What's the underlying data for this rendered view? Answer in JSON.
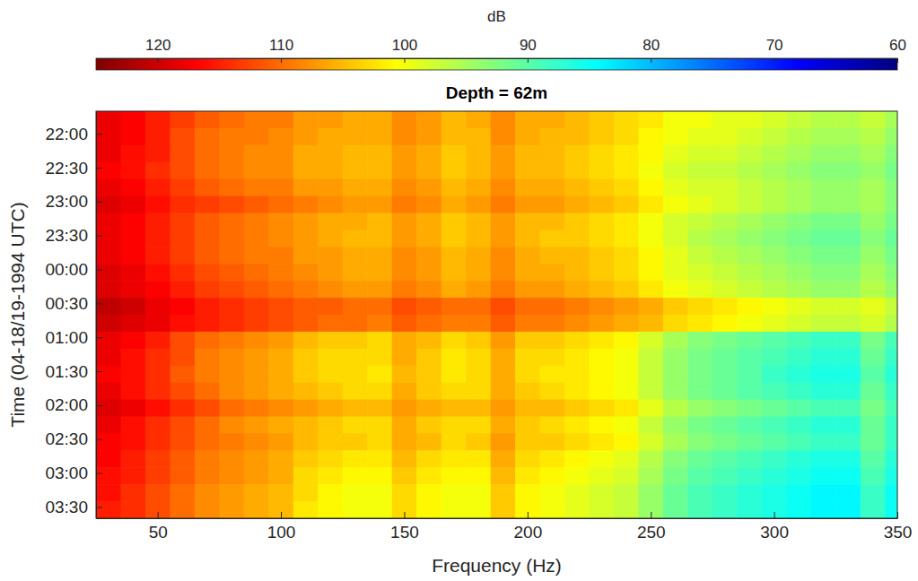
{
  "chart_data": {
    "type": "heatmap",
    "title": "Depth = 62m",
    "x_label": "Frequency (Hz)",
    "y_label": "Time (04-18/19-1994 UTC)",
    "xlim": [
      25,
      350
    ],
    "xticks": [
      50,
      100,
      150,
      200,
      250,
      300,
      350
    ],
    "ylim": [
      1300,
      1660
    ],
    "yticks": [
      {
        "value": 1320,
        "label": "22:00"
      },
      {
        "value": 1350,
        "label": "22:30"
      },
      {
        "value": 1380,
        "label": "23:00"
      },
      {
        "value": 1410,
        "label": "23:30"
      },
      {
        "value": 1440,
        "label": "00:00"
      },
      {
        "value": 1470,
        "label": "00:30"
      },
      {
        "value": 1500,
        "label": "01:00"
      },
      {
        "value": 1530,
        "label": "01:30"
      },
      {
        "value": 1560,
        "label": "02:00"
      },
      {
        "value": 1590,
        "label": "02:30"
      },
      {
        "value": 1620,
        "label": "03:00"
      },
      {
        "value": 1650,
        "label": "03:30"
      }
    ],
    "colorbar": {
      "title": "dB",
      "range": [
        125,
        60
      ],
      "ticks": [
        120,
        110,
        100,
        90,
        80,
        70,
        60
      ]
    },
    "x": [
      30,
      40,
      50,
      60,
      70,
      80,
      90,
      100,
      110,
      120,
      130,
      140,
      150,
      160,
      170,
      180,
      190,
      200,
      210,
      220,
      230,
      240,
      250,
      260,
      270,
      280,
      290,
      300,
      310,
      320,
      330,
      340,
      350
    ],
    "y": [
      1307.5,
      1322.5,
      1337.5,
      1352.5,
      1367.5,
      1382.5,
      1397.5,
      1412.5,
      1427.5,
      1442.5,
      1457.5,
      1472.5,
      1487.5,
      1502.5,
      1517.5,
      1532.5,
      1547.5,
      1562.5,
      1577.5,
      1592.5,
      1607.5,
      1622.5,
      1637.5,
      1652.5
    ],
    "values": [
      [
        118,
        117,
        115,
        113,
        111,
        110,
        109,
        109,
        107,
        107,
        106,
        106,
        108,
        107,
        105,
        106,
        108,
        106,
        106,
        105,
        104,
        103,
        102,
        100,
        100,
        99,
        99,
        98,
        97,
        96,
        96,
        97,
        95
      ],
      [
        118,
        117,
        115,
        112,
        110,
        109,
        109,
        108,
        107,
        106,
        106,
        106,
        108,
        107,
        105,
        105,
        108,
        106,
        105,
        105,
        104,
        103,
        101,
        100,
        99,
        99,
        98,
        97,
        96,
        95,
        95,
        96,
        94
      ],
      [
        118,
        116,
        115,
        112,
        110,
        109,
        108,
        108,
        106,
        106,
        105,
        105,
        107,
        106,
        104,
        105,
        107,
        105,
        105,
        104,
        103,
        102,
        101,
        99,
        98,
        98,
        97,
        96,
        95,
        94,
        94,
        95,
        93
      ],
      [
        117,
        116,
        114,
        112,
        110,
        109,
        108,
        108,
        106,
        106,
        105,
        105,
        107,
        106,
        104,
        105,
        107,
        105,
        105,
        104,
        103,
        102,
        100,
        98,
        97,
        97,
        96,
        95,
        94,
        93,
        93,
        94,
        92
      ],
      [
        118,
        117,
        115,
        113,
        111,
        110,
        109,
        109,
        107,
        107,
        106,
        106,
        108,
        107,
        105,
        106,
        108,
        106,
        106,
        105,
        104,
        103,
        101,
        99,
        98,
        98,
        97,
        96,
        95,
        94,
        94,
        95,
        93
      ],
      [
        119,
        118,
        116,
        114,
        113,
        112,
        111,
        110,
        109,
        108,
        107,
        107,
        109,
        108,
        106,
        107,
        109,
        107,
        107,
        106,
        105,
        104,
        102,
        100,
        99,
        98,
        97,
        96,
        95,
        94,
        94,
        95,
        93
      ],
      [
        118,
        117,
        115,
        113,
        111,
        110,
        109,
        108,
        107,
        106,
        106,
        105,
        107,
        106,
        104,
        105,
        107,
        105,
        105,
        104,
        103,
        102,
        100,
        98,
        97,
        96,
        95,
        94,
        93,
        92,
        92,
        94,
        92
      ],
      [
        118,
        117,
        115,
        113,
        111,
        110,
        109,
        108,
        107,
        106,
        105,
        105,
        107,
        106,
        104,
        105,
        107,
        105,
        104,
        104,
        103,
        102,
        100,
        98,
        96,
        95,
        94,
        93,
        92,
        91,
        91,
        93,
        91
      ],
      [
        118,
        117,
        115,
        113,
        111,
        110,
        109,
        109,
        107,
        107,
        106,
        106,
        108,
        107,
        105,
        106,
        108,
        106,
        105,
        105,
        104,
        103,
        101,
        99,
        97,
        96,
        95,
        94,
        93,
        92,
        92,
        94,
        92
      ],
      [
        119,
        118,
        116,
        114,
        112,
        111,
        110,
        109,
        108,
        107,
        106,
        106,
        108,
        107,
        105,
        106,
        108,
        106,
        106,
        105,
        104,
        103,
        101,
        99,
        98,
        97,
        96,
        95,
        94,
        93,
        93,
        95,
        93
      ],
      [
        119,
        118,
        117,
        115,
        113,
        112,
        111,
        110,
        109,
        108,
        107,
        107,
        109,
        108,
        106,
        107,
        109,
        107,
        107,
        106,
        105,
        104,
        102,
        100,
        99,
        98,
        97,
        96,
        95,
        94,
        94,
        96,
        94
      ],
      [
        121,
        120,
        118,
        117,
        115,
        114,
        113,
        112,
        111,
        111,
        110,
        110,
        112,
        111,
        110,
        110,
        112,
        110,
        110,
        109,
        108,
        107,
        106,
        104,
        103,
        102,
        101,
        100,
        99,
        98,
        98,
        99,
        97
      ],
      [
        120,
        119,
        118,
        116,
        115,
        114,
        113,
        112,
        111,
        110,
        110,
        109,
        111,
        110,
        109,
        109,
        111,
        109,
        109,
        108,
        107,
        106,
        105,
        103,
        102,
        101,
        100,
        99,
        98,
        97,
        97,
        98,
        96
      ],
      [
        118,
        117,
        115,
        112,
        110,
        109,
        108,
        107,
        105,
        104,
        104,
        103,
        106,
        105,
        103,
        104,
        107,
        104,
        104,
        103,
        102,
        101,
        98,
        95,
        93,
        92,
        91,
        90,
        89,
        88,
        88,
        92,
        89
      ],
      [
        118,
        116,
        114,
        112,
        109,
        108,
        107,
        106,
        104,
        103,
        103,
        103,
        106,
        104,
        102,
        103,
        106,
        103,
        103,
        102,
        101,
        100,
        97,
        94,
        92,
        91,
        90,
        89,
        88,
        87,
        87,
        91,
        88
      ],
      [
        117,
        116,
        114,
        111,
        109,
        108,
        107,
        106,
        104,
        103,
        103,
        102,
        105,
        104,
        102,
        103,
        106,
        103,
        102,
        102,
        101,
        100,
        97,
        94,
        92,
        91,
        90,
        88,
        87,
        86,
        86,
        90,
        87
      ],
      [
        118,
        116,
        114,
        112,
        110,
        108,
        107,
        106,
        105,
        104,
        103,
        103,
        106,
        104,
        103,
        103,
        106,
        104,
        103,
        102,
        101,
        100,
        97,
        94,
        92,
        91,
        90,
        89,
        88,
        87,
        87,
        91,
        88
      ],
      [
        119,
        118,
        116,
        114,
        112,
        110,
        109,
        108,
        107,
        106,
        105,
        105,
        107,
        106,
        105,
        105,
        107,
        105,
        105,
        104,
        103,
        102,
        99,
        96,
        94,
        93,
        92,
        91,
        90,
        89,
        89,
        92,
        89
      ],
      [
        118,
        116,
        114,
        112,
        110,
        108,
        107,
        106,
        105,
        104,
        103,
        103,
        106,
        104,
        103,
        103,
        106,
        104,
        103,
        102,
        101,
        100,
        97,
        94,
        92,
        91,
        90,
        89,
        88,
        87,
        87,
        91,
        88
      ],
      [
        117,
        116,
        114,
        112,
        110,
        109,
        108,
        107,
        105,
        104,
        104,
        103,
        106,
        105,
        103,
        104,
        107,
        104,
        104,
        103,
        102,
        101,
        98,
        95,
        93,
        92,
        91,
        90,
        89,
        88,
        88,
        91,
        88
      ],
      [
        117,
        115,
        113,
        111,
        109,
        108,
        107,
        106,
        104,
        103,
        102,
        102,
        105,
        103,
        102,
        102,
        106,
        103,
        102,
        101,
        100,
        99,
        96,
        93,
        91,
        90,
        89,
        88,
        87,
        86,
        86,
        90,
        87
      ],
      [
        116,
        115,
        113,
        111,
        109,
        108,
        107,
        106,
        103,
        102,
        101,
        101,
        104,
        102,
        101,
        101,
        105,
        102,
        101,
        100,
        99,
        98,
        95,
        92,
        90,
        89,
        88,
        87,
        86,
        85,
        85,
        89,
        86
      ],
      [
        116,
        114,
        112,
        110,
        108,
        107,
        106,
        105,
        103,
        101,
        100,
        100,
        103,
        101,
        100,
        100,
        104,
        101,
        100,
        99,
        98,
        97,
        94,
        91,
        89,
        88,
        87,
        86,
        85,
        84,
        84,
        88,
        85
      ],
      [
        115,
        114,
        112,
        110,
        108,
        107,
        106,
        105,
        102,
        101,
        100,
        100,
        103,
        101,
        100,
        100,
        104,
        101,
        100,
        99,
        98,
        97,
        94,
        91,
        89,
        88,
        87,
        86,
        85,
        84,
        84,
        88,
        85
      ]
    ]
  }
}
